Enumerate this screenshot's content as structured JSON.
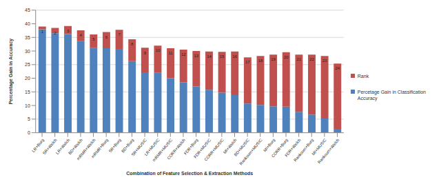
{
  "chart_data": {
    "type": "bar",
    "stacked": true,
    "grid": true,
    "legend": "right",
    "x_label": "Combination of Feature Selection & Extraction Methods",
    "y_label": "Percentage Gain in Accuracy",
    "categories": [
      "LR+Burg",
      "SR+Welch",
      "LR+Welch",
      "BD+Welch",
      "mRMR+Welch",
      "mRMR+Burg",
      "SR+Burg",
      "BD+Burg",
      "SR+MUSIC",
      "LR+MUSIC",
      "mRMR+MUSIC",
      "CORR+Welch",
      "FDR+Burg",
      "FDR+MUSIC",
      "CORR+MUSIC",
      "MI+Welch",
      "BD+MUSIC",
      "Ranksum+MUSIC",
      "MI+Burg",
      "CORR+Burg",
      "FDR+Welch",
      "Ranksum+Burg",
      "MI+MUSIC",
      "Ranksum+Welch"
    ],
    "series": [
      {
        "name": "Percetage Gain in Classification Accuracy",
        "color": "#4f81bd",
        "values": [
          38,
          36.5,
          36.2,
          33.6,
          31.1,
          31,
          30.8,
          26.3,
          22.2,
          22,
          20,
          18.5,
          17,
          15.8,
          14.7,
          13.8,
          10.7,
          10.2,
          9.7,
          9.6,
          7.7,
          6.7,
          5.2,
          1.4
        ]
      },
      {
        "name": "Rank",
        "color": "#c0504d",
        "data_labels": true,
        "values": [
          1,
          2,
          3,
          4,
          5,
          6,
          7,
          8,
          9,
          10,
          11,
          12,
          13,
          14,
          15,
          16,
          17,
          18,
          19,
          20,
          21,
          22,
          23,
          24
        ]
      }
    ],
    "ylim": [
      0,
      45
    ],
    "yticks": [
      0,
      5,
      10,
      15,
      20,
      25,
      30,
      35,
      40,
      45
    ]
  }
}
